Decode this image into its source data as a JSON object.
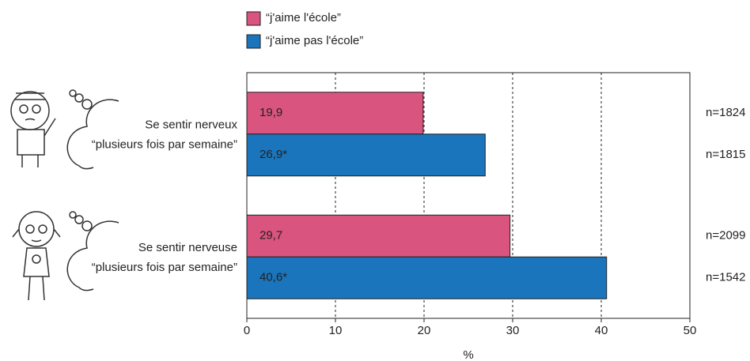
{
  "chart_data": {
    "type": "hbar",
    "categories": [
      [
        "Se sentir nerveux",
        "“plusieurs fois par semaine”"
      ],
      [
        "Se sentir nerveuse",
        "“plusieurs fois par semaine”"
      ]
    ],
    "series": [
      {
        "name": "“j'aime l'école”",
        "color": "#d9547f",
        "values": [
          19.9,
          29.7
        ],
        "value_labels": [
          "19,9",
          "29,7"
        ],
        "n_labels": [
          "n=1824",
          "n=2099"
        ]
      },
      {
        "name": "“j'aime pas l'école”",
        "color": "#1a75bc",
        "values": [
          26.9,
          40.6
        ],
        "value_labels": [
          "26,9*",
          "40,6*"
        ],
        "n_labels": [
          "n=1815",
          "n=1542"
        ]
      }
    ],
    "xlim": [
      0,
      50
    ],
    "xticks": [
      0,
      10,
      20,
      30,
      40,
      50
    ],
    "xlabel": "%",
    "grid": true
  }
}
